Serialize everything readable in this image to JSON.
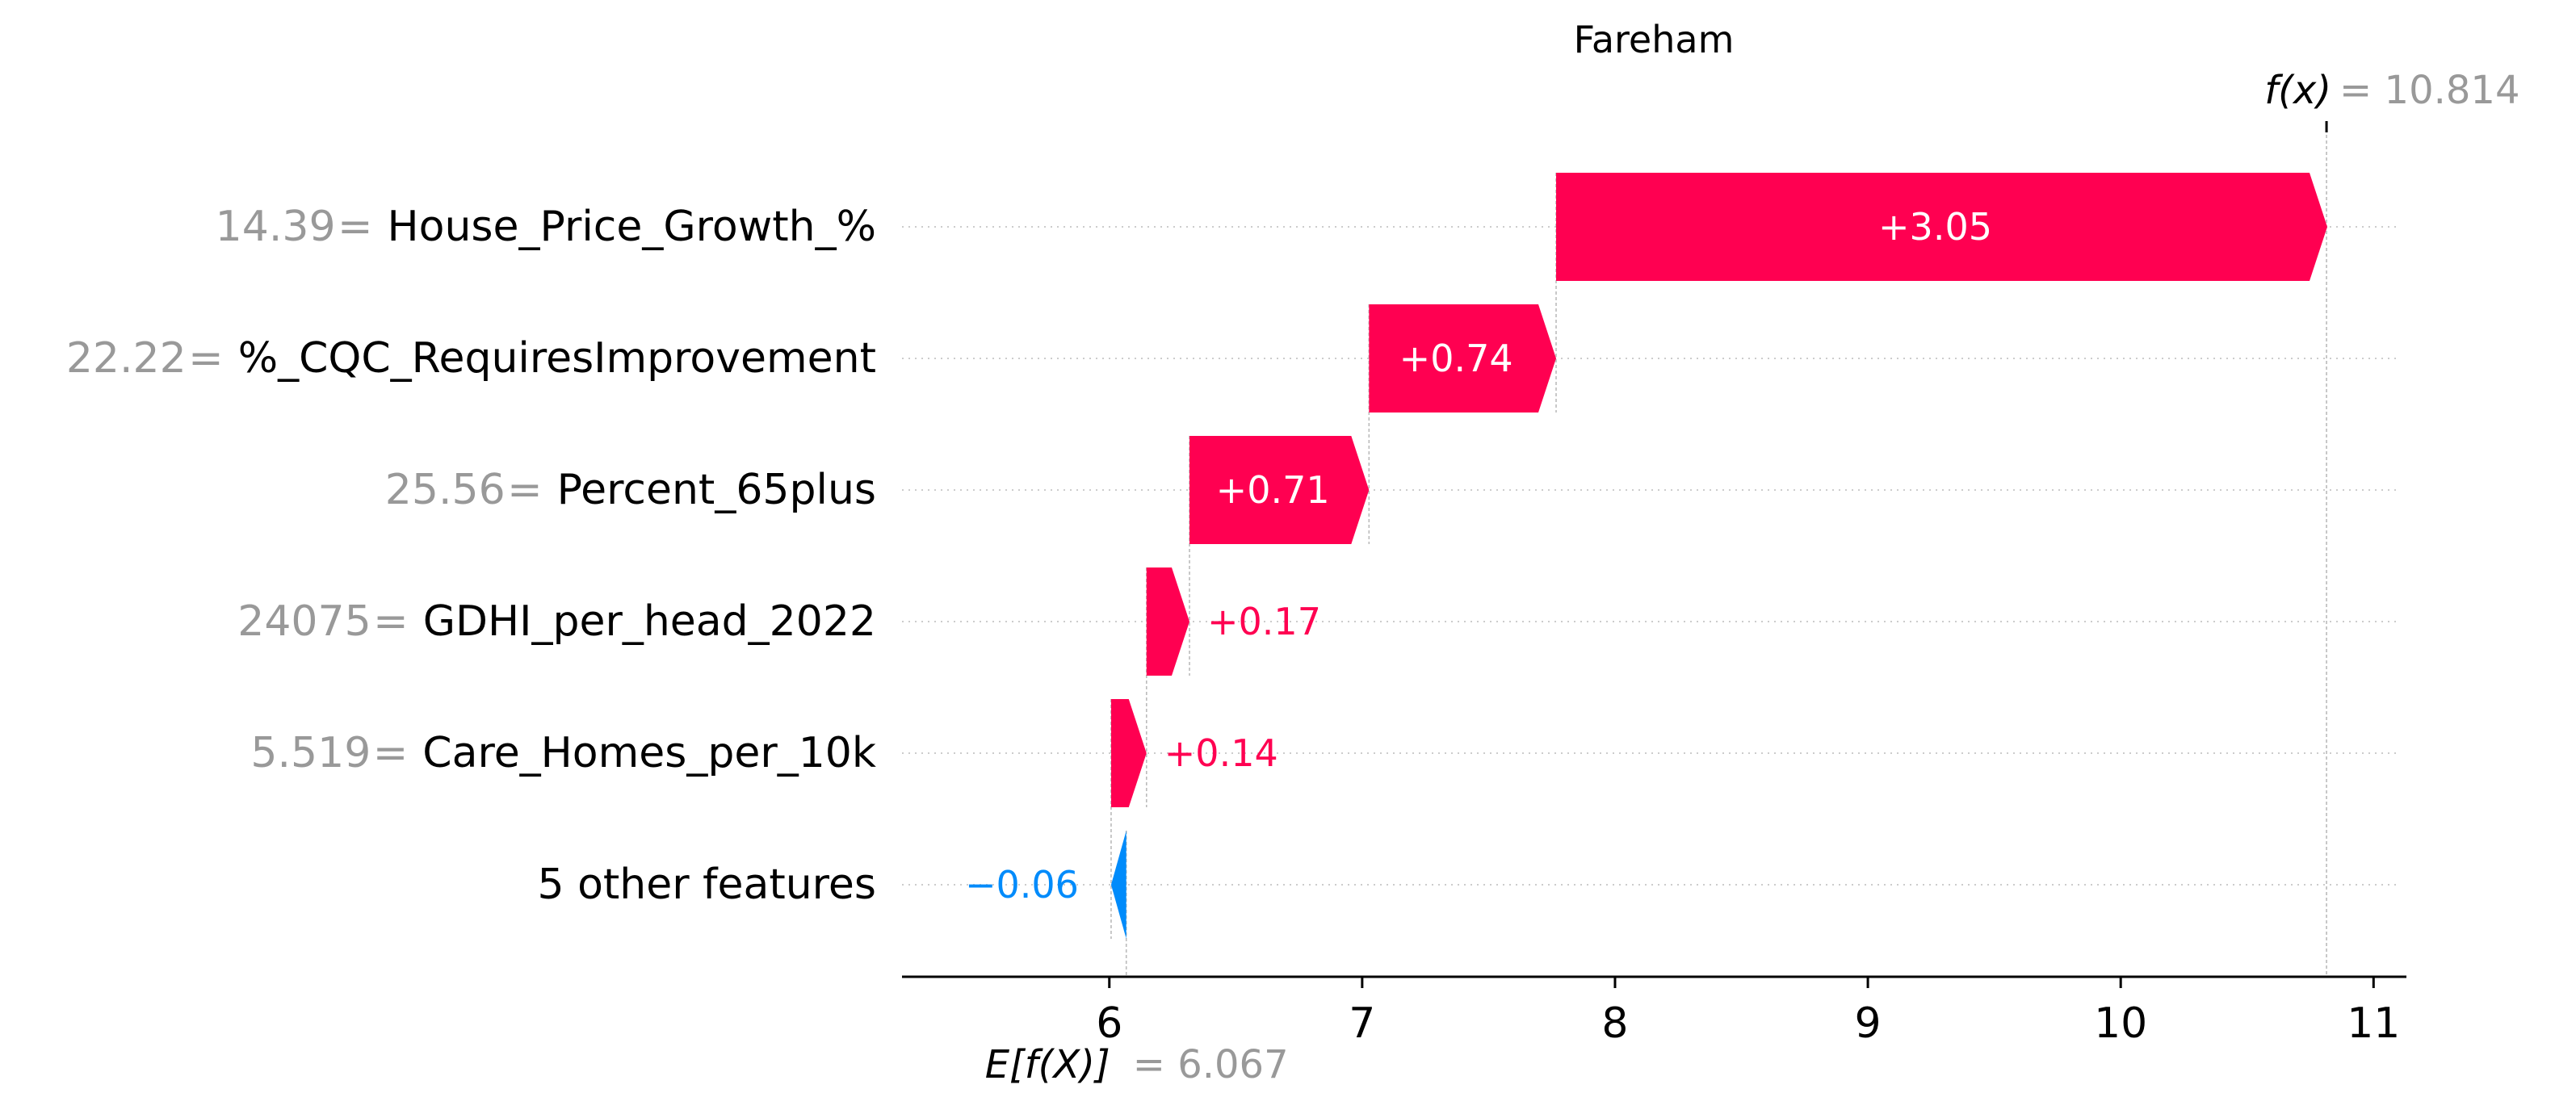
{
  "chart_data": {
    "type": "waterfall",
    "title": "Fareham",
    "xlabel": "",
    "ylabel": "",
    "xlim": [
      5.18,
      11.13
    ],
    "xticks": [
      6,
      7,
      8,
      9,
      10,
      11
    ],
    "base_value": 6.067,
    "base_value_label": "= 6.067",
    "base_value_name": "E[f(X)]",
    "output_value": 10.814,
    "output_value_label": "= 10.814",
    "output_value_name": "f(x)",
    "positive_color": "#ff0051",
    "negative_color": "#008bfb",
    "features": [
      {
        "value": "14.39",
        "name": "House_Price_Growth_%",
        "contribution": 3.05,
        "label": "+3.05"
      },
      {
        "value": "22.22",
        "name": "%_CQC_RequiresImprovement",
        "contribution": 0.74,
        "label": "+0.74"
      },
      {
        "value": "25.56",
        "name": "Percent_65plus",
        "contribution": 0.71,
        "label": "+0.71"
      },
      {
        "value": "24075",
        "name": "GDHI_per_head_2022",
        "contribution": 0.17,
        "label": "+0.17"
      },
      {
        "value": "5.519",
        "name": "Care_Homes_per_10k",
        "contribution": 0.14,
        "label": "+0.14"
      },
      {
        "value": "",
        "name": "5 other features",
        "contribution": -0.06,
        "label": "−0.06"
      }
    ]
  }
}
